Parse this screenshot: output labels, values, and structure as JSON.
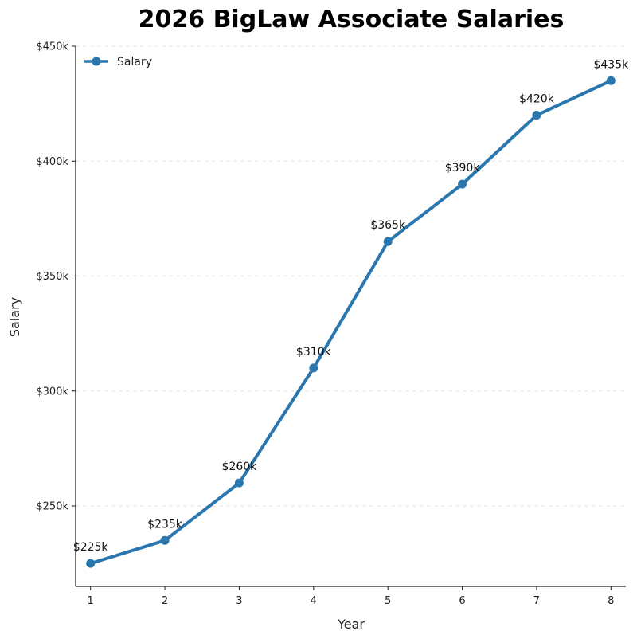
{
  "chart_data": {
    "type": "line",
    "title": "2026 BigLaw Associate Salaries",
    "xlabel": "Year",
    "ylabel": "Salary",
    "x": [
      1,
      2,
      3,
      4,
      5,
      6,
      7,
      8
    ],
    "series": [
      {
        "name": "Salary",
        "values": [
          225,
          235,
          260,
          310,
          365,
          390,
          420,
          435
        ],
        "labels": [
          "$225k",
          "$235k",
          "$260k",
          "$310k",
          "$365k",
          "$390k",
          "$420k",
          "$435k"
        ],
        "color": "#2a77b0"
      }
    ],
    "xlim": [
      0.8,
      8.2
    ],
    "ylim": [
      215,
      450
    ],
    "yticks": [
      250,
      300,
      350,
      400,
      450
    ],
    "ytick_labels": [
      "$250k",
      "$300k",
      "$350k",
      "$400k",
      "$450k"
    ],
    "xticks": [
      1,
      2,
      3,
      4,
      5,
      6,
      7,
      8
    ],
    "xtick_labels": [
      "1",
      "2",
      "3",
      "4",
      "5",
      "6",
      "7",
      "8"
    ],
    "grid": "horizontal dashed",
    "legend": "top-left"
  }
}
